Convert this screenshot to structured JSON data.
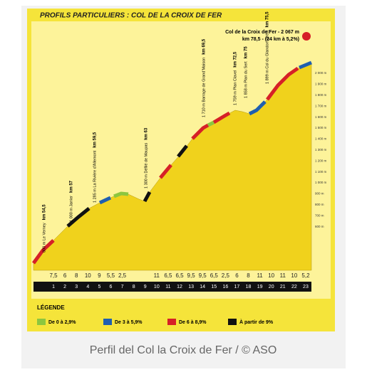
{
  "header": {
    "title": "PROFILS PARTICULIERS : COL DE LA CROIX DE FER"
  },
  "summit": {
    "name": "Col de la Croix de Fer - 2 067 m",
    "detail": "km 78,5 - (24 km à 5,2%)"
  },
  "places": [
    {
      "label": "800 m Le Verney",
      "km": "km 54,5"
    },
    {
      "label": "1 000 m Jarrier",
      "km": "km 57"
    },
    {
      "label": "1 285 m La Rivière d'Allemont",
      "km": "km 59,5"
    },
    {
      "label": "1 300 m Défilé de Maupas",
      "km": "km 63"
    },
    {
      "label": "1 710 m Barrage de Grand'Maison",
      "km": "km 69,5"
    },
    {
      "label": "1 759 m Plan Clavel",
      "km": "km 72,5"
    },
    {
      "label": "1 858 m Plan du Sert",
      "km": "km 75"
    },
    {
      "label": "1 899 m Col du Glandon (près)",
      "km": "km 75,5"
    }
  ],
  "altitudes": [
    "2 000 m",
    "1 900 m",
    "1 800 m",
    "1 700 m",
    "1 600 m",
    "1 500 m",
    "1 400 m",
    "1 300 m",
    "1 200 m",
    "1 100 m",
    "1 000 m",
    "900 m",
    "800 m",
    "700 m",
    "600 m"
  ],
  "gradients": [
    "7,5",
    "6",
    "8",
    "10",
    "9",
    "5,5",
    "2,5",
    null,
    null,
    "11",
    "6,5",
    "6,5",
    "9,5",
    "9,5",
    "6,5",
    "2,5",
    "6",
    "8",
    "11",
    "10",
    "11",
    "10",
    "5,2"
  ],
  "km": [
    "1",
    "2",
    "3",
    "4",
    "5",
    "6",
    "7",
    "8",
    "9",
    "10",
    "11",
    "12",
    "13",
    "14",
    "15",
    "16",
    "17",
    "18",
    "19",
    "20",
    "21",
    "22",
    "23"
  ],
  "legend": {
    "title": "LÉGENDE",
    "items": [
      "De 0 à 2,9%",
      "De 3 à 5,9%",
      "De 6 à 8,9%",
      "À partir de 9%"
    ]
  },
  "caption": "Perfil del Col la Croix de Fer / © ASO"
}
